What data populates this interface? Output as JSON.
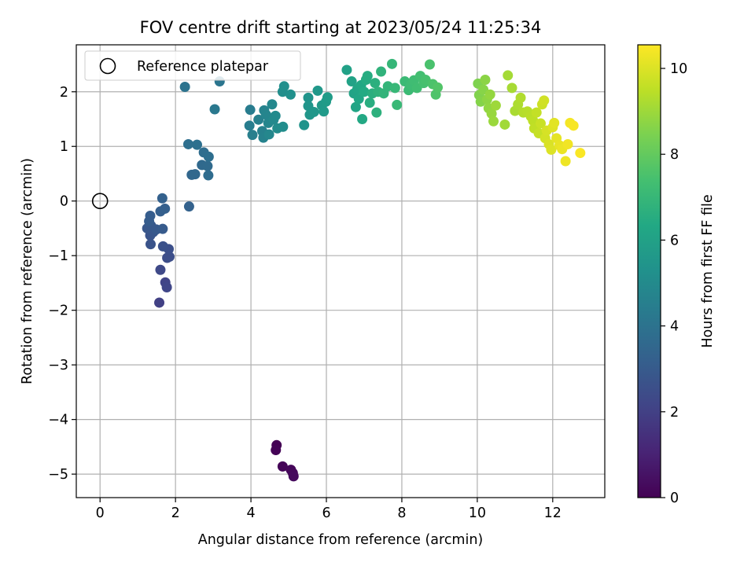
{
  "chart_data": {
    "type": "scatter",
    "title": "FOV centre drift starting at 2023/05/24 11:25:34",
    "xlabel": "Angular distance from reference (arcmin)",
    "ylabel": "Rotation from reference (arcmin)",
    "xlim": [
      -0.63,
      13.38
    ],
    "ylim": [
      -5.43,
      2.86
    ],
    "xticks": [
      0,
      2,
      4,
      6,
      8,
      10,
      12
    ],
    "yticks": [
      -5,
      -4,
      -3,
      -2,
      -1,
      0,
      1,
      2
    ],
    "xtick_labels": [
      "0",
      "2",
      "4",
      "6",
      "8",
      "10",
      "12"
    ],
    "ytick_labels": [
      "−5",
      "−4",
      "−3",
      "−2",
      "−1",
      "0",
      "1",
      "2"
    ],
    "grid": true,
    "legend": {
      "placement": "upper-left",
      "entries": [
        "Reference platepar"
      ]
    },
    "reference_point": {
      "x": 0,
      "y": 0
    },
    "colorbar": {
      "label": "Hours from first FF file",
      "range": [
        0,
        10.55
      ],
      "ticks": [
        0,
        2,
        4,
        6,
        8,
        10
      ],
      "tick_labels": [
        "0",
        "2",
        "4",
        "6",
        "8",
        "10"
      ],
      "colormap": "viridis"
    },
    "points": [
      {
        "x": 4.68,
        "y": -4.47,
        "c": 0.0
      },
      {
        "x": 4.66,
        "y": -4.56,
        "c": 0.05
      },
      {
        "x": 4.84,
        "y": -4.86,
        "c": 0.1
      },
      {
        "x": 5.06,
        "y": -4.92,
        "c": 0.15
      },
      {
        "x": 5.11,
        "y": -4.98,
        "c": 0.2
      },
      {
        "x": 5.13,
        "y": -5.04,
        "c": 0.25
      },
      {
        "x": 1.57,
        "y": -1.86,
        "c": 2.0
      },
      {
        "x": 1.73,
        "y": -1.49,
        "c": 2.1
      },
      {
        "x": 1.77,
        "y": -1.58,
        "c": 2.2
      },
      {
        "x": 1.6,
        "y": -1.26,
        "c": 2.3
      },
      {
        "x": 1.78,
        "y": -1.04,
        "c": 2.45
      },
      {
        "x": 1.84,
        "y": -1.02,
        "c": 2.5
      },
      {
        "x": 1.82,
        "y": -0.88,
        "c": 2.55
      },
      {
        "x": 1.67,
        "y": -0.83,
        "c": 2.6
      },
      {
        "x": 1.34,
        "y": -0.79,
        "c": 2.7
      },
      {
        "x": 1.33,
        "y": -0.63,
        "c": 2.75
      },
      {
        "x": 1.41,
        "y": -0.57,
        "c": 2.8
      },
      {
        "x": 1.25,
        "y": -0.5,
        "c": 2.85
      },
      {
        "x": 1.35,
        "y": -0.45,
        "c": 2.9
      },
      {
        "x": 1.49,
        "y": -0.52,
        "c": 2.95
      },
      {
        "x": 1.66,
        "y": -0.51,
        "c": 3.0
      },
      {
        "x": 1.3,
        "y": -0.37,
        "c": 3.05
      },
      {
        "x": 1.33,
        "y": -0.27,
        "c": 3.1
      },
      {
        "x": 1.6,
        "y": -0.19,
        "c": 3.15
      },
      {
        "x": 1.72,
        "y": -0.14,
        "c": 3.2
      },
      {
        "x": 1.65,
        "y": 0.05,
        "c": 3.25
      },
      {
        "x": 2.36,
        "y": -0.1,
        "c": 3.3
      },
      {
        "x": 2.43,
        "y": 0.48,
        "c": 3.5
      },
      {
        "x": 2.52,
        "y": 0.49,
        "c": 3.55
      },
      {
        "x": 2.7,
        "y": 0.66,
        "c": 3.6
      },
      {
        "x": 2.85,
        "y": 0.64,
        "c": 3.65
      },
      {
        "x": 2.87,
        "y": 0.47,
        "c": 3.7
      },
      {
        "x": 2.75,
        "y": 0.89,
        "c": 3.75
      },
      {
        "x": 2.88,
        "y": 0.81,
        "c": 3.8
      },
      {
        "x": 2.34,
        "y": 1.04,
        "c": 3.85
      },
      {
        "x": 2.57,
        "y": 1.03,
        "c": 3.9
      },
      {
        "x": 2.25,
        "y": 2.09,
        "c": 4.0
      },
      {
        "x": 3.17,
        "y": 2.19,
        "c": 4.1
      },
      {
        "x": 3.04,
        "y": 1.68,
        "c": 4.2
      },
      {
        "x": 3.98,
        "y": 1.67,
        "c": 4.4
      },
      {
        "x": 3.96,
        "y": 1.38,
        "c": 4.45
      },
      {
        "x": 4.04,
        "y": 1.21,
        "c": 4.5
      },
      {
        "x": 4.2,
        "y": 1.49,
        "c": 4.55
      },
      {
        "x": 4.3,
        "y": 1.28,
        "c": 4.6
      },
      {
        "x": 4.33,
        "y": 1.16,
        "c": 4.65
      },
      {
        "x": 4.35,
        "y": 1.66,
        "c": 4.7
      },
      {
        "x": 4.4,
        "y": 1.58,
        "c": 4.75
      },
      {
        "x": 4.46,
        "y": 1.43,
        "c": 4.8
      },
      {
        "x": 4.48,
        "y": 1.22,
        "c": 4.85
      },
      {
        "x": 4.56,
        "y": 1.77,
        "c": 4.9
      },
      {
        "x": 4.6,
        "y": 1.49,
        "c": 4.95
      },
      {
        "x": 4.65,
        "y": 1.56,
        "c": 5.0
      },
      {
        "x": 4.7,
        "y": 1.33,
        "c": 5.05
      },
      {
        "x": 4.85,
        "y": 1.36,
        "c": 5.1
      },
      {
        "x": 4.84,
        "y": 2.0,
        "c": 5.15
      },
      {
        "x": 4.88,
        "y": 2.1,
        "c": 5.2
      },
      {
        "x": 5.05,
        "y": 1.95,
        "c": 5.25
      },
      {
        "x": 5.41,
        "y": 1.39,
        "c": 5.35
      },
      {
        "x": 5.52,
        "y": 1.89,
        "c": 5.4
      },
      {
        "x": 5.52,
        "y": 1.74,
        "c": 5.45
      },
      {
        "x": 5.56,
        "y": 1.58,
        "c": 5.5
      },
      {
        "x": 5.67,
        "y": 1.63,
        "c": 5.55
      },
      {
        "x": 5.77,
        "y": 2.02,
        "c": 5.6
      },
      {
        "x": 5.88,
        "y": 1.75,
        "c": 5.65
      },
      {
        "x": 5.93,
        "y": 1.64,
        "c": 5.7
      },
      {
        "x": 5.99,
        "y": 1.82,
        "c": 5.75
      },
      {
        "x": 6.03,
        "y": 1.9,
        "c": 5.8
      },
      {
        "x": 6.54,
        "y": 2.4,
        "c": 6.0
      },
      {
        "x": 6.67,
        "y": 2.19,
        "c": 6.05
      },
      {
        "x": 6.73,
        "y": 1.97,
        "c": 6.1
      },
      {
        "x": 6.78,
        "y": 1.72,
        "c": 6.15
      },
      {
        "x": 6.82,
        "y": 2.05,
        "c": 6.2
      },
      {
        "x": 6.86,
        "y": 1.87,
        "c": 6.25
      },
      {
        "x": 6.92,
        "y": 2.12,
        "c": 6.3
      },
      {
        "x": 6.95,
        "y": 1.5,
        "c": 6.35
      },
      {
        "x": 7.0,
        "y": 2.0,
        "c": 6.4
      },
      {
        "x": 7.05,
        "y": 2.22,
        "c": 6.45
      },
      {
        "x": 7.09,
        "y": 2.29,
        "c": 6.5
      },
      {
        "x": 7.15,
        "y": 1.8,
        "c": 6.55
      },
      {
        "x": 7.22,
        "y": 1.97,
        "c": 6.6
      },
      {
        "x": 7.29,
        "y": 2.16,
        "c": 6.65
      },
      {
        "x": 7.33,
        "y": 1.62,
        "c": 6.7
      },
      {
        "x": 7.37,
        "y": 2.0,
        "c": 6.75
      },
      {
        "x": 7.45,
        "y": 2.37,
        "c": 6.8
      },
      {
        "x": 7.52,
        "y": 1.97,
        "c": 6.85
      },
      {
        "x": 7.63,
        "y": 2.1,
        "c": 6.9
      },
      {
        "x": 7.74,
        "y": 2.51,
        "c": 6.95
      },
      {
        "x": 7.82,
        "y": 2.07,
        "c": 7.0
      },
      {
        "x": 7.87,
        "y": 1.76,
        "c": 7.05
      },
      {
        "x": 8.08,
        "y": 2.19,
        "c": 7.1
      },
      {
        "x": 8.18,
        "y": 2.03,
        "c": 7.15
      },
      {
        "x": 8.24,
        "y": 2.13,
        "c": 7.2
      },
      {
        "x": 8.32,
        "y": 2.21,
        "c": 7.25
      },
      {
        "x": 8.4,
        "y": 2.07,
        "c": 7.3
      },
      {
        "x": 8.49,
        "y": 2.29,
        "c": 7.35
      },
      {
        "x": 8.58,
        "y": 2.16,
        "c": 7.4
      },
      {
        "x": 8.63,
        "y": 2.22,
        "c": 7.45
      },
      {
        "x": 8.74,
        "y": 2.5,
        "c": 7.5
      },
      {
        "x": 8.82,
        "y": 2.14,
        "c": 7.55
      },
      {
        "x": 8.9,
        "y": 1.95,
        "c": 7.6
      },
      {
        "x": 8.95,
        "y": 2.08,
        "c": 7.65
      },
      {
        "x": 10.02,
        "y": 2.15,
        "c": 8.5
      },
      {
        "x": 10.05,
        "y": 1.94,
        "c": 8.55
      },
      {
        "x": 10.09,
        "y": 1.82,
        "c": 8.6
      },
      {
        "x": 10.16,
        "y": 2.04,
        "c": 8.65
      },
      {
        "x": 10.21,
        "y": 2.22,
        "c": 8.7
      },
      {
        "x": 10.26,
        "y": 1.86,
        "c": 8.75
      },
      {
        "x": 10.3,
        "y": 1.7,
        "c": 8.8
      },
      {
        "x": 10.34,
        "y": 1.95,
        "c": 8.85
      },
      {
        "x": 10.38,
        "y": 1.6,
        "c": 8.9
      },
      {
        "x": 10.43,
        "y": 1.46,
        "c": 8.95
      },
      {
        "x": 10.49,
        "y": 1.75,
        "c": 9.0
      },
      {
        "x": 10.73,
        "y": 1.4,
        "c": 9.05
      },
      {
        "x": 10.81,
        "y": 2.3,
        "c": 9.1
      },
      {
        "x": 10.92,
        "y": 2.07,
        "c": 9.15
      },
      {
        "x": 11.0,
        "y": 1.65,
        "c": 9.2
      },
      {
        "x": 11.08,
        "y": 1.77,
        "c": 9.25
      },
      {
        "x": 11.15,
        "y": 1.89,
        "c": 9.3
      },
      {
        "x": 11.22,
        "y": 1.62,
        "c": 9.35
      },
      {
        "x": 11.33,
        "y": 1.64,
        "c": 9.4
      },
      {
        "x": 11.42,
        "y": 1.55,
        "c": 9.45
      },
      {
        "x": 11.48,
        "y": 1.47,
        "c": 9.5
      },
      {
        "x": 11.51,
        "y": 1.33,
        "c": 9.55
      },
      {
        "x": 11.57,
        "y": 1.62,
        "c": 9.6
      },
      {
        "x": 11.63,
        "y": 1.24,
        "c": 9.65
      },
      {
        "x": 11.68,
        "y": 1.42,
        "c": 9.7
      },
      {
        "x": 11.72,
        "y": 1.77,
        "c": 9.75
      },
      {
        "x": 11.77,
        "y": 1.84,
        "c": 9.8
      },
      {
        "x": 11.8,
        "y": 1.15,
        "c": 9.85
      },
      {
        "x": 11.84,
        "y": 1.29,
        "c": 9.9
      },
      {
        "x": 11.9,
        "y": 1.04,
        "c": 9.95
      },
      {
        "x": 11.96,
        "y": 0.94,
        "c": 10.0
      },
      {
        "x": 12.0,
        "y": 1.35,
        "c": 10.05
      },
      {
        "x": 12.04,
        "y": 1.43,
        "c": 10.1
      },
      {
        "x": 12.1,
        "y": 1.15,
        "c": 10.15
      },
      {
        "x": 12.18,
        "y": 1.02,
        "c": 10.2
      },
      {
        "x": 12.25,
        "y": 0.95,
        "c": 10.25
      },
      {
        "x": 12.34,
        "y": 0.73,
        "c": 10.3
      },
      {
        "x": 12.4,
        "y": 1.04,
        "c": 10.35
      },
      {
        "x": 12.46,
        "y": 1.43,
        "c": 10.4
      },
      {
        "x": 12.55,
        "y": 1.38,
        "c": 10.45
      },
      {
        "x": 12.73,
        "y": 0.88,
        "c": 10.5
      }
    ]
  }
}
